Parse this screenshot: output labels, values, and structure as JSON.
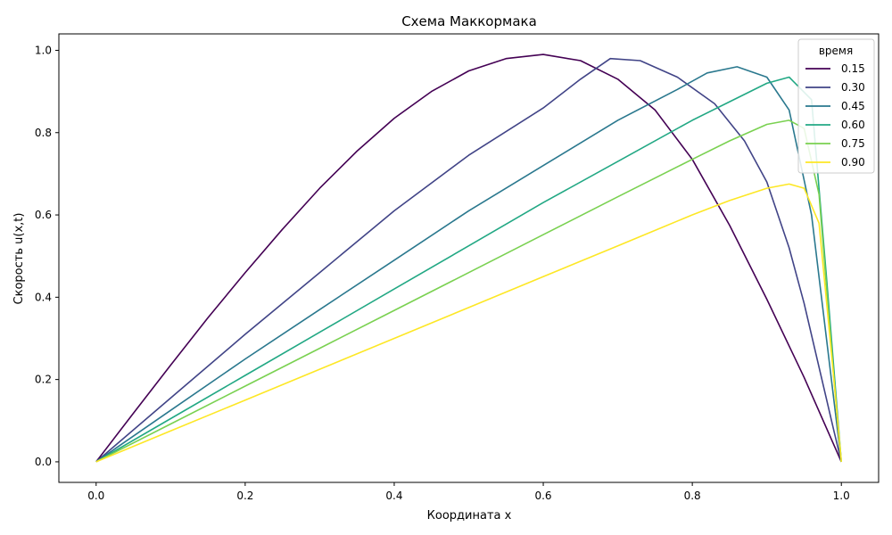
{
  "chart_data": {
    "type": "line",
    "title": "Схема Маккормака",
    "xlabel": "Координата x",
    "ylabel": "Скорость u(x,t)",
    "xlim": [
      -0.05,
      1.05
    ],
    "ylim": [
      -0.05,
      1.04
    ],
    "xticks": [
      "0.0",
      "0.2",
      "0.4",
      "0.6",
      "0.8",
      "1.0"
    ],
    "yticks": [
      "0.0",
      "0.2",
      "0.4",
      "0.6",
      "0.8",
      "1.0"
    ],
    "grid": false,
    "legend": {
      "title": "время",
      "placement": "top-right"
    },
    "series": [
      {
        "name": "0.15",
        "color": "#440154",
        "x": [
          0.0,
          0.05,
          0.1,
          0.15,
          0.2,
          0.25,
          0.3,
          0.35,
          0.4,
          0.45,
          0.5,
          0.55,
          0.6,
          0.65,
          0.7,
          0.75,
          0.8,
          0.85,
          0.9,
          0.95,
          1.0
        ],
        "y": [
          0.0,
          0.118,
          0.235,
          0.35,
          0.46,
          0.565,
          0.665,
          0.755,
          0.835,
          0.9,
          0.95,
          0.98,
          0.99,
          0.975,
          0.93,
          0.855,
          0.735,
          0.575,
          0.395,
          0.205,
          0.0
        ]
      },
      {
        "name": "0.30",
        "color": "#414487",
        "x": [
          0.0,
          0.1,
          0.2,
          0.3,
          0.4,
          0.5,
          0.6,
          0.65,
          0.69,
          0.73,
          0.78,
          0.83,
          0.87,
          0.9,
          0.93,
          0.95,
          0.97,
          0.99,
          1.0
        ],
        "y": [
          0.0,
          0.155,
          0.31,
          0.46,
          0.61,
          0.745,
          0.86,
          0.93,
          0.98,
          0.975,
          0.935,
          0.87,
          0.78,
          0.68,
          0.52,
          0.385,
          0.23,
          0.075,
          0.0
        ]
      },
      {
        "name": "0.45",
        "color": "#2a788e",
        "x": [
          0.0,
          0.1,
          0.2,
          0.3,
          0.4,
          0.5,
          0.6,
          0.7,
          0.78,
          0.82,
          0.86,
          0.9,
          0.93,
          0.96,
          0.98,
          1.0
        ],
        "y": [
          0.0,
          0.125,
          0.25,
          0.37,
          0.49,
          0.61,
          0.72,
          0.83,
          0.905,
          0.945,
          0.96,
          0.935,
          0.855,
          0.6,
          0.3,
          0.0
        ]
      },
      {
        "name": "0.60",
        "color": "#22a884",
        "x": [
          0.0,
          0.1,
          0.2,
          0.3,
          0.4,
          0.5,
          0.6,
          0.7,
          0.8,
          0.85,
          0.9,
          0.93,
          0.96,
          0.98,
          1.0
        ],
        "y": [
          0.0,
          0.105,
          0.21,
          0.315,
          0.42,
          0.525,
          0.63,
          0.73,
          0.83,
          0.875,
          0.92,
          0.935,
          0.88,
          0.45,
          0.0
        ]
      },
      {
        "name": "0.75",
        "color": "#7ad151",
        "x": [
          0.0,
          0.1,
          0.2,
          0.3,
          0.4,
          0.5,
          0.6,
          0.7,
          0.8,
          0.85,
          0.9,
          0.93,
          0.95,
          0.97,
          0.99,
          1.0
        ],
        "y": [
          0.0,
          0.092,
          0.184,
          0.276,
          0.368,
          0.46,
          0.552,
          0.644,
          0.735,
          0.78,
          0.82,
          0.83,
          0.81,
          0.65,
          0.2,
          0.0
        ]
      },
      {
        "name": "0.90",
        "color": "#fde725",
        "x": [
          0.0,
          0.1,
          0.2,
          0.3,
          0.4,
          0.5,
          0.6,
          0.7,
          0.8,
          0.85,
          0.9,
          0.93,
          0.95,
          0.97,
          0.99,
          1.0
        ],
        "y": [
          0.0,
          0.075,
          0.15,
          0.225,
          0.3,
          0.375,
          0.45,
          0.525,
          0.6,
          0.635,
          0.665,
          0.675,
          0.665,
          0.58,
          0.2,
          0.0
        ]
      }
    ]
  }
}
